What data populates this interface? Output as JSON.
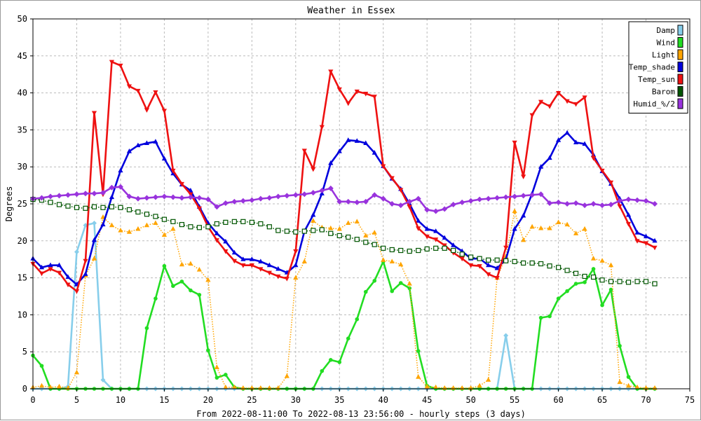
{
  "chart_data": {
    "type": "line",
    "title": "Weather in Essex",
    "xlabel": "From 2022-08-11:00 To 2022-08-13 23:56:00 - hourly steps (3 days)",
    "ylabel": "Degrees",
    "xlim": [
      0,
      75
    ],
    "ylim": [
      0,
      50
    ],
    "xticks": [
      0,
      5,
      10,
      15,
      20,
      25,
      30,
      35,
      40,
      45,
      50,
      55,
      60,
      65,
      70,
      75
    ],
    "yticks": [
      0,
      5,
      10,
      15,
      20,
      25,
      30,
      35,
      40,
      45,
      50
    ],
    "grid": true,
    "legend_position": "top-right",
    "series": [
      {
        "name": "Damp",
        "color": "#87ceeb",
        "style": "solid",
        "marker": "diamond",
        "values": [
          0,
          0,
          0,
          0,
          0.3,
          18.5,
          22.1,
          22.4,
          1.2,
          0,
          0,
          0,
          0,
          0,
          0,
          0,
          0,
          0,
          0,
          0,
          0,
          0,
          0,
          0,
          0,
          0,
          0,
          0,
          0,
          0,
          0,
          0,
          0,
          0,
          0,
          0,
          0,
          0,
          0,
          0,
          0,
          0,
          0,
          0,
          0,
          0,
          0,
          0,
          0,
          0,
          0,
          0,
          0,
          0,
          7.2,
          0,
          0,
          0,
          0,
          0,
          0,
          0,
          0,
          0,
          0,
          0,
          0,
          0,
          0,
          0,
          0,
          0
        ]
      },
      {
        "name": "Wind",
        "color": "#22dd22",
        "style": "solid",
        "marker": "circle",
        "values": [
          4.5,
          3.1,
          0,
          0,
          0,
          0,
          0,
          0,
          0,
          0,
          0,
          0,
          0,
          8.2,
          12.2,
          16.6,
          13.9,
          14.5,
          13.3,
          12.7,
          5.2,
          1.5,
          1.9,
          0.2,
          0,
          0,
          0,
          0,
          0,
          0,
          0,
          0,
          0,
          2.4,
          3.9,
          3.6,
          6.8,
          9.4,
          13.1,
          14.6,
          17.2,
          13.2,
          14.3,
          13.6,
          5.1,
          0.4,
          0,
          0,
          0,
          0,
          0,
          0,
          0,
          0,
          0,
          0,
          0,
          0,
          9.6,
          9.8,
          12.2,
          13.2,
          14.2,
          14.4,
          16.2,
          11.3,
          13.4,
          5.8,
          1.6,
          0,
          0,
          0
        ]
      },
      {
        "name": "Light",
        "color": "#ffa500",
        "style": "dotted",
        "marker": "triangle",
        "values": [
          0.2,
          0.4,
          0.2,
          0.3,
          0.1,
          2.2,
          15.3,
          17.6,
          23.2,
          22.1,
          21.4,
          21.2,
          21.6,
          22.1,
          22.4,
          20.8,
          21.6,
          16.8,
          16.9,
          16.1,
          14.7,
          2.9,
          0.2,
          0.2,
          0.1,
          0.1,
          0.1,
          0.1,
          0.1,
          1.7,
          15.0,
          17.2,
          22.7,
          21.8,
          21.7,
          21.6,
          22.4,
          22.6,
          20.7,
          21.1,
          17.4,
          17.2,
          16.8,
          14.2,
          1.6,
          0.3,
          0.2,
          0.1,
          0.1,
          0.1,
          0.1,
          0.4,
          1.2,
          15.0,
          17.9,
          24.0,
          20.1,
          21.9,
          21.7,
          21.7,
          22.5,
          22.2,
          21.0,
          21.6,
          17.6,
          17.3,
          16.7,
          0.9,
          0.4,
          0.2,
          0.1,
          0.1
        ]
      },
      {
        "name": "Temp_shade",
        "color": "#0000dd",
        "style": "solid",
        "marker": "triangle",
        "values": [
          17.6,
          16.4,
          16.7,
          16.7,
          15.1,
          14.1,
          15.5,
          20.1,
          22.2,
          25.9,
          29.5,
          32.1,
          32.9,
          33.2,
          33.4,
          31.1,
          29.1,
          27.6,
          26.8,
          24.6,
          22.4,
          21.0,
          19.9,
          18.4,
          17.5,
          17.5,
          17.2,
          16.7,
          16.2,
          15.7,
          16.7,
          21.3,
          23.5,
          26.4,
          30.5,
          32.1,
          33.6,
          33.5,
          33.2,
          31.9,
          30.1,
          28.4,
          27.0,
          25.0,
          22.7,
          21.6,
          21.3,
          20.4,
          19.4,
          18.6,
          17.6,
          17.6,
          16.7,
          16.3,
          17.5,
          21.6,
          23.4,
          26.4,
          30.0,
          31.2,
          33.6,
          34.6,
          33.3,
          33.1,
          31.6,
          29.4,
          27.7,
          25.7,
          23.5,
          21.1,
          20.6,
          20.0
        ]
      },
      {
        "name": "Temp_sun",
        "color": "#ee1111",
        "style": "solid",
        "marker": "triangle-down",
        "values": [
          16.9,
          15.6,
          16.2,
          15.7,
          14.1,
          13.2,
          17.3,
          37.3,
          26.3,
          44.2,
          43.7,
          40.9,
          40.3,
          37.7,
          40.1,
          37.6,
          29.5,
          27.7,
          26.3,
          24.4,
          21.9,
          20.1,
          18.6,
          17.3,
          16.7,
          16.7,
          16.2,
          15.7,
          15.2,
          14.9,
          18.6,
          32.2,
          29.7,
          35.4,
          42.9,
          40.5,
          38.6,
          40.2,
          39.9,
          39.5,
          30.1,
          28.5,
          26.9,
          24.6,
          21.7,
          20.6,
          20.2,
          19.4,
          18.4,
          17.6,
          16.7,
          16.6,
          15.5,
          15.0,
          19.1,
          33.3,
          28.7,
          37.0,
          38.8,
          38.2,
          40.0,
          38.9,
          38.5,
          39.4,
          31.2,
          29.5,
          27.9,
          24.7,
          22.3,
          20.0,
          19.7,
          19.1
        ]
      },
      {
        "name": "Barom",
        "color": "#005500",
        "style": "dotted",
        "marker": "square",
        "values": [
          25.6,
          25.5,
          25.2,
          24.9,
          24.7,
          24.5,
          24.4,
          24.6,
          24.5,
          24.6,
          24.5,
          24.2,
          23.9,
          23.6,
          23.3,
          22.9,
          22.6,
          22.2,
          21.9,
          21.8,
          21.9,
          22.3,
          22.5,
          22.6,
          22.6,
          22.5,
          22.3,
          21.9,
          21.4,
          21.3,
          21.2,
          21.3,
          21.4,
          21.5,
          21.0,
          20.7,
          20.5,
          20.2,
          19.8,
          19.5,
          19.0,
          18.8,
          18.7,
          18.6,
          18.7,
          18.9,
          19.0,
          19.0,
          18.7,
          18.2,
          17.8,
          17.6,
          17.4,
          17.4,
          17.3,
          17.2,
          17.0,
          17.0,
          16.9,
          16.6,
          16.4,
          16.0,
          15.6,
          15.2,
          15.1,
          14.7,
          14.5,
          14.5,
          14.4,
          14.5,
          14.5,
          14.2
        ]
      },
      {
        "name": "Humid_%/2",
        "color": "#9933dd",
        "style": "solid",
        "marker": "star",
        "values": [
          25.7,
          25.8,
          26.0,
          26.1,
          26.2,
          26.3,
          26.4,
          26.4,
          26.5,
          27.2,
          27.3,
          26.0,
          25.7,
          25.8,
          25.9,
          26.0,
          25.9,
          25.8,
          25.9,
          25.8,
          25.6,
          24.6,
          25.1,
          25.3,
          25.4,
          25.5,
          25.7,
          25.8,
          26.0,
          26.1,
          26.2,
          26.3,
          26.5,
          26.8,
          27.1,
          25.3,
          25.3,
          25.2,
          25.3,
          26.2,
          25.7,
          25.0,
          24.8,
          25.3,
          25.7,
          24.2,
          24.0,
          24.3,
          24.9,
          25.2,
          25.4,
          25.6,
          25.7,
          25.8,
          25.9,
          26.0,
          26.1,
          26.2,
          26.3,
          25.1,
          25.2,
          25.0,
          25.1,
          24.8,
          25.0,
          24.8,
          24.9,
          25.4,
          25.6,
          25.5,
          25.4,
          25.0
        ]
      }
    ]
  }
}
